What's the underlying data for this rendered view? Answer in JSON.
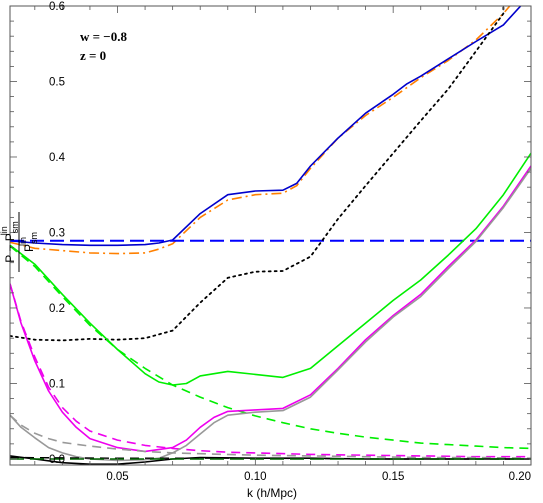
{
  "chart_data": {
    "type": "line",
    "title": "",
    "xlabel": "k (h/Mpc)",
    "ylabel": "P − P_sm^lin / P_sm^lin",
    "ylabel_parts": {
      "num_main": "P − P",
      "num_sup": "lin",
      "num_sub": "sm",
      "den_main": "P",
      "den_sup": "lin",
      "den_sub": "sm"
    },
    "xlim": [
      0.011,
      0.2
    ],
    "ylim": [
      -0.008,
      0.6
    ],
    "x_ticks": [
      0.05,
      0.1,
      0.15,
      0.2
    ],
    "x_tick_labels": [
      "0.05",
      "0.10",
      "0.15",
      "0.20"
    ],
    "y_ticks": [
      0.0,
      0.1,
      0.2,
      0.3,
      0.4,
      0.5,
      0.6
    ],
    "y_tick_labels": [
      "0.0",
      "0.1",
      "0.2",
      "0.3",
      "0.4",
      "0.5",
      "0.6"
    ],
    "grid": false,
    "annotations": [
      {
        "text": "w = −0.8",
        "x": 0.018,
        "y": 0.565
      },
      {
        "text": "z = 0",
        "x": 0.018,
        "y": 0.532
      }
    ],
    "series": [
      {
        "color": "#ff8000",
        "style": "dashdot",
        "width": 1.6,
        "points": [
          [
            0.011,
            0.287
          ],
          [
            0.02,
            0.279
          ],
          [
            0.03,
            0.276
          ],
          [
            0.04,
            0.273
          ],
          [
            0.05,
            0.272
          ],
          [
            0.06,
            0.273
          ],
          [
            0.065,
            0.278
          ],
          [
            0.07,
            0.285
          ],
          [
            0.08,
            0.32
          ],
          [
            0.09,
            0.343
          ],
          [
            0.1,
            0.35
          ],
          [
            0.11,
            0.352
          ],
          [
            0.115,
            0.362
          ],
          [
            0.12,
            0.385
          ],
          [
            0.13,
            0.425
          ],
          [
            0.14,
            0.455
          ],
          [
            0.15,
            0.479
          ],
          [
            0.155,
            0.492
          ],
          [
            0.16,
            0.505
          ],
          [
            0.17,
            0.528
          ],
          [
            0.18,
            0.555
          ],
          [
            0.19,
            0.59
          ],
          [
            0.193,
            0.603
          ]
        ]
      },
      {
        "color": "#0000cc",
        "style": "solid",
        "width": 1.6,
        "points": [
          [
            0.011,
            0.289
          ],
          [
            0.02,
            0.286
          ],
          [
            0.03,
            0.284
          ],
          [
            0.04,
            0.283
          ],
          [
            0.05,
            0.283
          ],
          [
            0.06,
            0.284
          ],
          [
            0.065,
            0.286
          ],
          [
            0.07,
            0.29
          ],
          [
            0.08,
            0.325
          ],
          [
            0.09,
            0.35
          ],
          [
            0.1,
            0.355
          ],
          [
            0.11,
            0.356
          ],
          [
            0.115,
            0.365
          ],
          [
            0.12,
            0.388
          ],
          [
            0.13,
            0.425
          ],
          [
            0.14,
            0.458
          ],
          [
            0.15,
            0.483
          ],
          [
            0.155,
            0.497
          ],
          [
            0.16,
            0.507
          ],
          [
            0.17,
            0.53
          ],
          [
            0.18,
            0.553
          ],
          [
            0.19,
            0.575
          ],
          [
            0.197,
            0.603
          ]
        ]
      },
      {
        "color": "#0000ff",
        "style": "longdash",
        "width": 2.0,
        "points": [
          [
            0.011,
            0.289
          ],
          [
            0.2,
            0.289
          ]
        ]
      },
      {
        "color": "#000000",
        "style": "dotted",
        "width": 1.8,
        "points": [
          [
            0.011,
            0.163
          ],
          [
            0.02,
            0.158
          ],
          [
            0.03,
            0.157
          ],
          [
            0.04,
            0.159
          ],
          [
            0.05,
            0.158
          ],
          [
            0.06,
            0.16
          ],
          [
            0.07,
            0.17
          ],
          [
            0.08,
            0.207
          ],
          [
            0.09,
            0.24
          ],
          [
            0.1,
            0.248
          ],
          [
            0.11,
            0.249
          ],
          [
            0.12,
            0.268
          ],
          [
            0.13,
            0.318
          ],
          [
            0.14,
            0.362
          ],
          [
            0.15,
            0.405
          ],
          [
            0.16,
            0.448
          ],
          [
            0.17,
            0.49
          ],
          [
            0.18,
            0.54
          ],
          [
            0.19,
            0.59
          ],
          [
            0.19,
            0.603
          ]
        ]
      },
      {
        "color": "#00ee00",
        "style": "solid",
        "width": 1.6,
        "points": [
          [
            0.011,
            0.283
          ],
          [
            0.02,
            0.258
          ],
          [
            0.03,
            0.218
          ],
          [
            0.04,
            0.18
          ],
          [
            0.05,
            0.145
          ],
          [
            0.06,
            0.113
          ],
          [
            0.065,
            0.102
          ],
          [
            0.07,
            0.098
          ],
          [
            0.075,
            0.1
          ],
          [
            0.08,
            0.11
          ],
          [
            0.09,
            0.116
          ],
          [
            0.1,
            0.112
          ],
          [
            0.11,
            0.108
          ],
          [
            0.12,
            0.12
          ],
          [
            0.13,
            0.15
          ],
          [
            0.14,
            0.18
          ],
          [
            0.15,
            0.21
          ],
          [
            0.16,
            0.237
          ],
          [
            0.17,
            0.27
          ],
          [
            0.18,
            0.305
          ],
          [
            0.19,
            0.35
          ],
          [
            0.2,
            0.405
          ]
        ]
      },
      {
        "color": "#00ee00",
        "style": "dashed",
        "width": 1.6,
        "points": [
          [
            0.011,
            0.282
          ],
          [
            0.02,
            0.255
          ],
          [
            0.03,
            0.215
          ],
          [
            0.04,
            0.177
          ],
          [
            0.05,
            0.145
          ],
          [
            0.06,
            0.12
          ],
          [
            0.07,
            0.098
          ],
          [
            0.08,
            0.082
          ],
          [
            0.09,
            0.068
          ],
          [
            0.1,
            0.057
          ],
          [
            0.11,
            0.048
          ],
          [
            0.12,
            0.04
          ],
          [
            0.13,
            0.034
          ],
          [
            0.14,
            0.029
          ],
          [
            0.15,
            0.025
          ],
          [
            0.16,
            0.021
          ],
          [
            0.17,
            0.019
          ],
          [
            0.18,
            0.017
          ],
          [
            0.19,
            0.015
          ],
          [
            0.2,
            0.014
          ]
        ]
      },
      {
        "color": "#ee00ee",
        "style": "solid",
        "width": 1.6,
        "points": [
          [
            0.011,
            0.232
          ],
          [
            0.015,
            0.18
          ],
          [
            0.02,
            0.13
          ],
          [
            0.025,
            0.09
          ],
          [
            0.03,
            0.062
          ],
          [
            0.035,
            0.042
          ],
          [
            0.04,
            0.027
          ],
          [
            0.05,
            0.015
          ],
          [
            0.06,
            0.01
          ],
          [
            0.07,
            0.015
          ],
          [
            0.075,
            0.025
          ],
          [
            0.08,
            0.042
          ],
          [
            0.085,
            0.055
          ],
          [
            0.09,
            0.063
          ],
          [
            0.1,
            0.065
          ],
          [
            0.11,
            0.067
          ],
          [
            0.12,
            0.085
          ],
          [
            0.13,
            0.12
          ],
          [
            0.14,
            0.158
          ],
          [
            0.15,
            0.19
          ],
          [
            0.16,
            0.218
          ],
          [
            0.17,
            0.255
          ],
          [
            0.18,
            0.29
          ],
          [
            0.19,
            0.335
          ],
          [
            0.2,
            0.388
          ]
        ]
      },
      {
        "color": "#ee00ee",
        "style": "dashed",
        "width": 1.6,
        "points": [
          [
            0.011,
            0.232
          ],
          [
            0.015,
            0.182
          ],
          [
            0.02,
            0.135
          ],
          [
            0.025,
            0.095
          ],
          [
            0.03,
            0.068
          ],
          [
            0.035,
            0.05
          ],
          [
            0.04,
            0.037
          ],
          [
            0.05,
            0.025
          ],
          [
            0.06,
            0.018
          ],
          [
            0.07,
            0.014
          ],
          [
            0.08,
            0.011
          ],
          [
            0.09,
            0.009
          ],
          [
            0.1,
            0.008
          ],
          [
            0.12,
            0.006
          ],
          [
            0.14,
            0.005
          ],
          [
            0.16,
            0.004
          ],
          [
            0.18,
            0.003
          ],
          [
            0.2,
            0.003
          ]
        ]
      },
      {
        "color": "#999999",
        "style": "solid",
        "width": 1.6,
        "points": [
          [
            0.011,
            0.058
          ],
          [
            0.015,
            0.042
          ],
          [
            0.02,
            0.028
          ],
          [
            0.025,
            0.015
          ],
          [
            0.03,
            0.008
          ],
          [
            0.035,
            0.003
          ],
          [
            0.04,
            0.0
          ],
          [
            0.05,
            -0.002
          ],
          [
            0.06,
            -0.001
          ],
          [
            0.065,
            0.001
          ],
          [
            0.07,
            0.008
          ],
          [
            0.075,
            0.018
          ],
          [
            0.08,
            0.033
          ],
          [
            0.085,
            0.048
          ],
          [
            0.09,
            0.058
          ],
          [
            0.1,
            0.062
          ],
          [
            0.11,
            0.064
          ],
          [
            0.12,
            0.082
          ],
          [
            0.13,
            0.118
          ],
          [
            0.14,
            0.155
          ],
          [
            0.15,
            0.188
          ],
          [
            0.16,
            0.215
          ],
          [
            0.17,
            0.252
          ],
          [
            0.18,
            0.288
          ],
          [
            0.19,
            0.333
          ],
          [
            0.2,
            0.385
          ]
        ]
      },
      {
        "color": "#999999",
        "style": "dashed",
        "width": 1.6,
        "points": [
          [
            0.011,
            0.058
          ],
          [
            0.015,
            0.045
          ],
          [
            0.02,
            0.034
          ],
          [
            0.025,
            0.027
          ],
          [
            0.03,
            0.022
          ],
          [
            0.04,
            0.017
          ],
          [
            0.05,
            0.013
          ],
          [
            0.06,
            0.01
          ],
          [
            0.07,
            0.008
          ],
          [
            0.08,
            0.007
          ],
          [
            0.1,
            0.005
          ],
          [
            0.12,
            0.004
          ],
          [
            0.14,
            0.003
          ],
          [
            0.16,
            0.002
          ],
          [
            0.18,
            0.002
          ],
          [
            0.2,
            0.001
          ]
        ]
      },
      {
        "color": "#000000",
        "style": "solid",
        "width": 1.6,
        "points": [
          [
            0.011,
            0.004
          ],
          [
            0.02,
            0.0
          ],
          [
            0.03,
            -0.005
          ],
          [
            0.04,
            -0.007
          ],
          [
            0.05,
            -0.007
          ],
          [
            0.06,
            -0.004
          ],
          [
            0.07,
            0.0
          ],
          [
            0.08,
            0.002
          ],
          [
            0.1,
            0.001
          ],
          [
            0.12,
            0.001
          ],
          [
            0.14,
            0.0
          ],
          [
            0.16,
            0.0
          ],
          [
            0.18,
            0.0
          ],
          [
            0.2,
            0.0
          ]
        ]
      },
      {
        "color": "#000000",
        "style": "dashed",
        "width": 1.4,
        "points": [
          [
            0.011,
            0.002
          ],
          [
            0.05,
            0.001
          ],
          [
            0.1,
            0.001
          ],
          [
            0.15,
            0.0
          ],
          [
            0.2,
            0.0
          ]
        ]
      },
      {
        "color": "#006400",
        "style": "longdash",
        "width": 1.6,
        "points": [
          [
            0.011,
            0.0
          ],
          [
            0.2,
            0.0
          ]
        ]
      }
    ]
  }
}
